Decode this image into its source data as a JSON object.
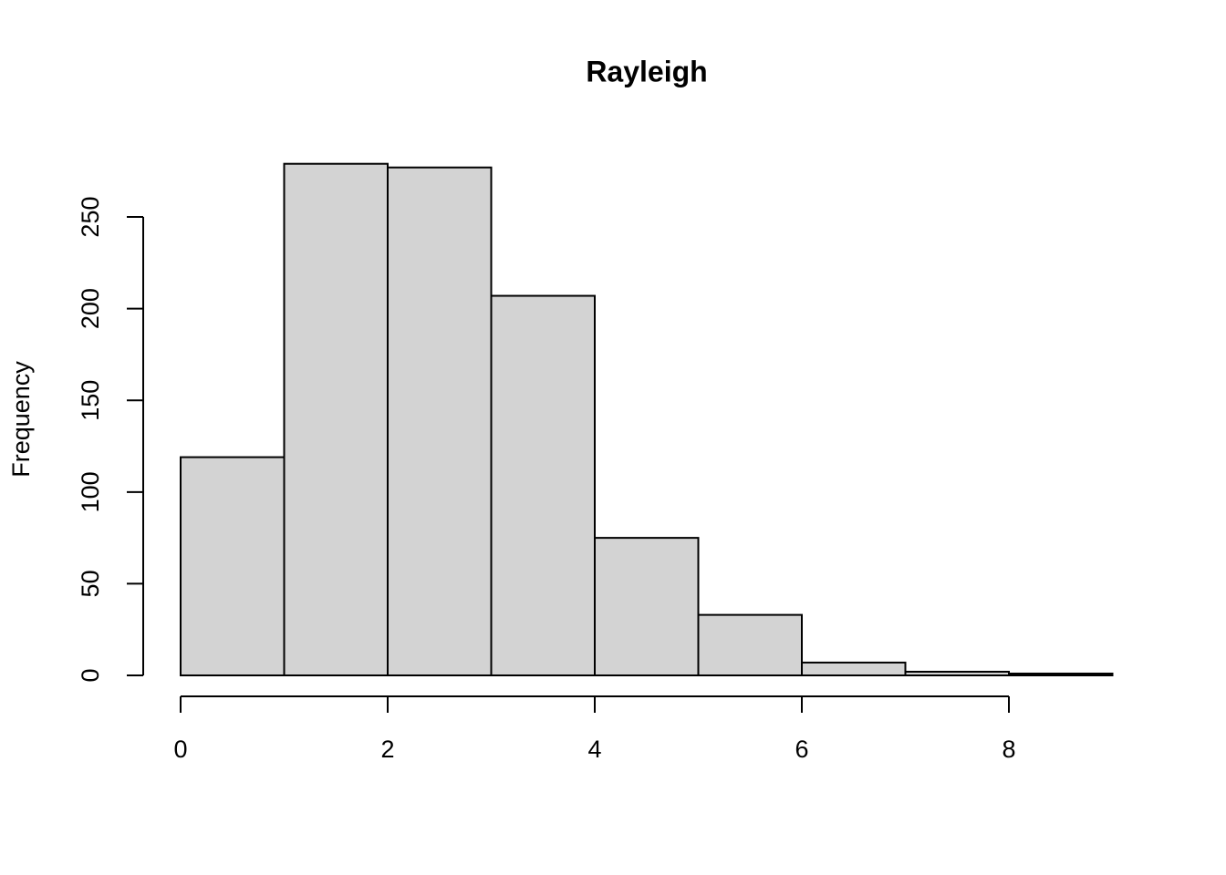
{
  "chart_data": {
    "type": "histogram",
    "title": "Rayleigh",
    "y_label": "Frequency",
    "bins": [
      0,
      1,
      2,
      3,
      4,
      5,
      6,
      7,
      8,
      9
    ],
    "counts": [
      119,
      279,
      277,
      207,
      75,
      33,
      7,
      2,
      1
    ],
    "color": "#d3d3d3",
    "xlim": [
      0,
      9
    ],
    "xticks": [
      0,
      2,
      4,
      6,
      8
    ],
    "ylim": [
      0,
      279
    ],
    "yticks": [
      0,
      50,
      100,
      150,
      200,
      250
    ],
    "grid": false
  }
}
